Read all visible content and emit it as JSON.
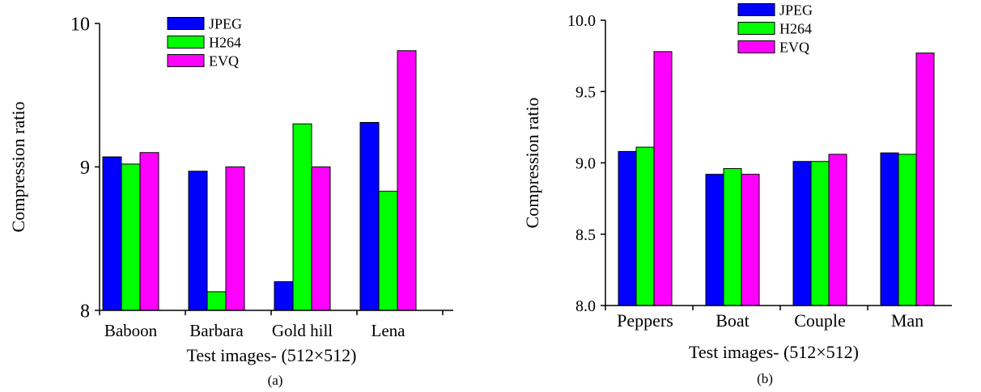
{
  "colors": {
    "JPEG": "#0000ff",
    "H264": "#00ff00",
    "EVQ": "#ff00ff",
    "axis": "#000000"
  },
  "chart_data": [
    {
      "type": "bar",
      "panel_label": "(a)",
      "categories": [
        "Baboon",
        "Barbara",
        "Gold hill",
        "Lena"
      ],
      "series": [
        {
          "name": "JPEG",
          "values": [
            9.07,
            8.97,
            8.2,
            9.31
          ]
        },
        {
          "name": "H264",
          "values": [
            9.02,
            8.13,
            9.3,
            8.83
          ]
        },
        {
          "name": "EVQ",
          "values": [
            9.1,
            9.0,
            9.0,
            9.81
          ]
        }
      ],
      "xlabel": "Test images- (512×512)",
      "ylabel": "Compression ratio",
      "ylim": [
        8,
        10
      ],
      "yticks": [
        8,
        9,
        10
      ],
      "ytick_labels": [
        "8",
        "9",
        "10"
      ],
      "grid": false,
      "legend": "top-center"
    },
    {
      "type": "bar",
      "panel_label": "(b)",
      "categories": [
        "Peppers",
        "Boat",
        "Couple",
        "Man"
      ],
      "series": [
        {
          "name": "JPEG",
          "values": [
            9.08,
            8.92,
            9.01,
            9.07
          ]
        },
        {
          "name": "H264",
          "values": [
            9.11,
            8.96,
            9.01,
            9.06
          ]
        },
        {
          "name": "EVQ",
          "values": [
            9.78,
            8.92,
            9.06,
            9.77
          ]
        }
      ],
      "xlabel": "Test images- (512×512)",
      "ylabel": "Compression ratio",
      "ylim": [
        8,
        10
      ],
      "yticks": [
        8,
        8.5,
        9,
        9.5,
        10
      ],
      "ytick_labels": [
        "8.0",
        "8.5",
        "9.0",
        "9.5",
        "10.0"
      ],
      "grid": false,
      "legend": "top-center"
    }
  ]
}
